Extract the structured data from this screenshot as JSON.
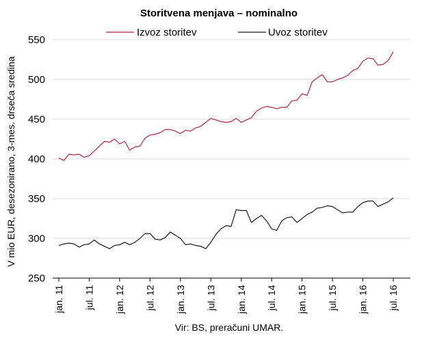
{
  "chart_data": {
    "type": "line",
    "title": "Storitvena menjava – nominalno",
    "ylabel": "V mio EUR, desezonirano, 3-mes. drseča sredina",
    "source": "Vir: BS, preračuni UMAR.",
    "ylim": [
      250,
      550
    ],
    "yticks": [
      250,
      300,
      350,
      400,
      450,
      500,
      550
    ],
    "xticks": [
      {
        "label": "jan. 11",
        "i": 0
      },
      {
        "label": "jul. 11",
        "i": 6
      },
      {
        "label": "jan. 12",
        "i": 12
      },
      {
        "label": "jul. 12",
        "i": 18
      },
      {
        "label": "jan. 13",
        "i": 24
      },
      {
        "label": "jul. 13",
        "i": 30
      },
      {
        "label": "jan. 14",
        "i": 36
      },
      {
        "label": "jul. 14",
        "i": 42
      },
      {
        "label": "jan. 15",
        "i": 48
      },
      {
        "label": "jul. 15",
        "i": 54
      },
      {
        "label": "jan. 16",
        "i": 60
      },
      {
        "label": "jul. 16",
        "i": 66
      }
    ],
    "grid": "horizontal",
    "legend_position": "top",
    "series": [
      {
        "name": "Izvoz storitev",
        "color": "#a8283c",
        "values": [
          401,
          398,
          406,
          405,
          406,
          402,
          404,
          410,
          416,
          422,
          421,
          425,
          419,
          422,
          411,
          415,
          416,
          426,
          430,
          431,
          433,
          437,
          437,
          435,
          432,
          436,
          435,
          439,
          441,
          446,
          451,
          449,
          447,
          446,
          447,
          451,
          446,
          449,
          452,
          460,
          464,
          466,
          465,
          463,
          465,
          465,
          473,
          474,
          482,
          480,
          497,
          502,
          506,
          497,
          497,
          500,
          502,
          505,
          511,
          514,
          523,
          527,
          526,
          518,
          519,
          524,
          535
        ]
      },
      {
        "name": "Uvoz storitev",
        "color": "#1a1a1a",
        "values": [
          291,
          293,
          294,
          293,
          289,
          292,
          293,
          298,
          293,
          290,
          287,
          291,
          292,
          295,
          292,
          295,
          300,
          306,
          306,
          299,
          298,
          301,
          308,
          304,
          300,
          292,
          293,
          291,
          290,
          287,
          295,
          305,
          312,
          316,
          315,
          336,
          335,
          335,
          320,
          325,
          329,
          322,
          312,
          310,
          322,
          326,
          327,
          320,
          325,
          330,
          333,
          338,
          339,
          341,
          340,
          336,
          332,
          333,
          333,
          340,
          345,
          347,
          347,
          340,
          343,
          346,
          351
        ]
      }
    ]
  }
}
